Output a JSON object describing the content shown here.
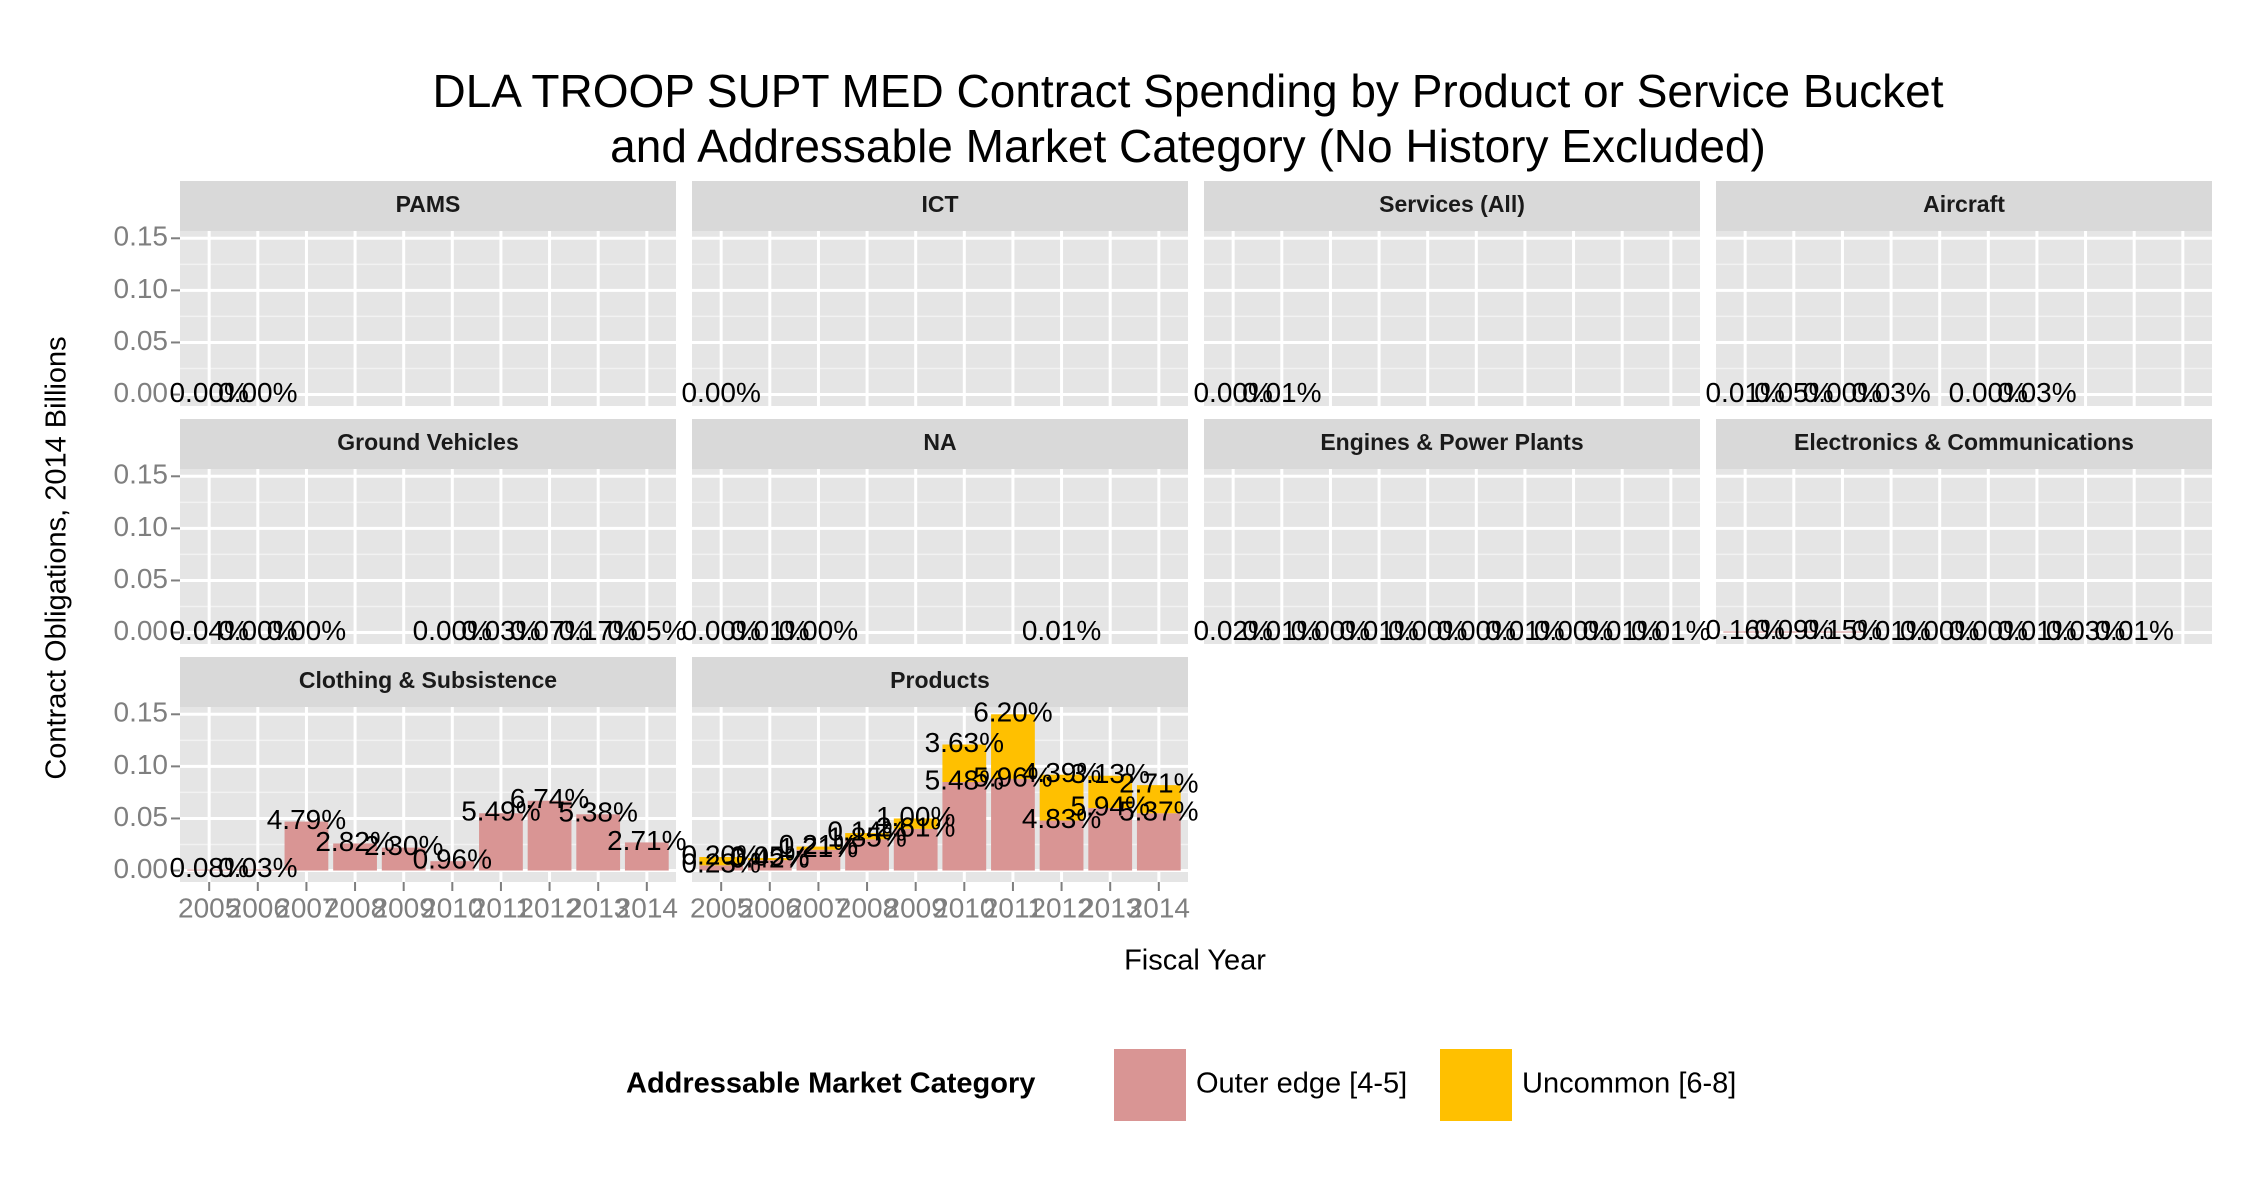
{
  "title": [
    "DLA TROOP SUPT MED Contract Spending by Product or Service Bucket",
    "and Addressable Market Category (No History Excluded)"
  ],
  "x_label": "Fiscal Year",
  "y_label": "Contract Obligations, 2014 Billions",
  "legend_title": "Addressable Market Category",
  "chart_data": [
    {
      "type": "bar",
      "stacked": true,
      "title": "PAMS",
      "grid": true,
      "categories": [
        "2005",
        "2006",
        "2007",
        "2008",
        "2009",
        "2010",
        "2011",
        "2012",
        "2013",
        "2014"
      ],
      "ylim": [
        -0.011,
        0.157
      ],
      "yticks": [
        {
          "value": 0,
          "label": "0.00"
        },
        {
          "value": 0.05,
          "label": "0.05"
        },
        {
          "value": 0.1,
          "label": "0.10"
        },
        {
          "value": 0.15,
          "label": "0.15"
        }
      ],
      "series": [
        {
          "name": "Outer edge [4-5]",
          "color": "#d99594",
          "values": [
            0,
            0,
            null,
            null,
            null,
            null,
            null,
            null,
            null,
            null
          ],
          "share_labels": [
            "0.00%",
            "0.00%",
            null,
            null,
            null,
            null,
            null,
            null,
            null,
            null
          ]
        },
        {
          "name": "Uncommon [6-8]",
          "color": "#ffc000",
          "values": [
            null,
            null,
            null,
            null,
            null,
            null,
            null,
            null,
            null,
            null
          ],
          "share_labels": [
            null,
            null,
            null,
            null,
            null,
            null,
            null,
            null,
            null,
            null
          ]
        }
      ]
    },
    {
      "type": "bar",
      "stacked": true,
      "title": "ICT",
      "grid": true,
      "categories": [
        "2005",
        "2006",
        "2007",
        "2008",
        "2009",
        "2010",
        "2011",
        "2012",
        "2013",
        "2014"
      ],
      "ylim": [
        -0.011,
        0.157
      ],
      "yticks": [
        {
          "value": 0,
          "label": "0.00"
        },
        {
          "value": 0.05,
          "label": "0.05"
        },
        {
          "value": 0.1,
          "label": "0.10"
        },
        {
          "value": 0.15,
          "label": "0.15"
        }
      ],
      "series": [
        {
          "name": "Outer edge [4-5]",
          "color": "#d99594",
          "values": [
            0,
            null,
            null,
            null,
            null,
            null,
            null,
            null,
            null,
            null
          ],
          "share_labels": [
            "0.00%",
            null,
            null,
            null,
            null,
            null,
            null,
            null,
            null,
            null
          ]
        },
        {
          "name": "Uncommon [6-8]",
          "color": "#ffc000",
          "values": [
            null,
            null,
            null,
            null,
            null,
            null,
            null,
            null,
            null,
            null
          ],
          "share_labels": [
            null,
            null,
            null,
            null,
            null,
            null,
            null,
            null,
            null,
            null
          ]
        }
      ]
    },
    {
      "type": "bar",
      "stacked": true,
      "title": "Services (All)",
      "grid": true,
      "categories": [
        "2005",
        "2006",
        "2007",
        "2008",
        "2009",
        "2010",
        "2011",
        "2012",
        "2013",
        "2014"
      ],
      "ylim": [
        -0.011,
        0.157
      ],
      "yticks": [
        {
          "value": 0,
          "label": "0.00"
        },
        {
          "value": 0.05,
          "label": "0.05"
        },
        {
          "value": 0.1,
          "label": "0.10"
        },
        {
          "value": 0.15,
          "label": "0.15"
        }
      ],
      "series": [
        {
          "name": "Outer edge [4-5]",
          "color": "#d99594",
          "values": [
            0,
            0,
            null,
            null,
            null,
            null,
            null,
            null,
            null,
            null
          ],
          "share_labels": [
            "0.00%",
            "0.01%",
            null,
            null,
            null,
            null,
            null,
            null,
            null,
            null
          ]
        },
        {
          "name": "Uncommon [6-8]",
          "color": "#ffc000",
          "values": [
            null,
            null,
            null,
            null,
            null,
            null,
            null,
            null,
            null,
            null
          ],
          "share_labels": [
            null,
            null,
            null,
            null,
            null,
            null,
            null,
            null,
            null,
            null
          ]
        }
      ]
    },
    {
      "type": "bar",
      "stacked": true,
      "title": "Aircraft",
      "grid": true,
      "categories": [
        "2005",
        "2006",
        "2007",
        "2008",
        "2009",
        "2010",
        "2011",
        "2012",
        "2013",
        "2014"
      ],
      "ylim": [
        -0.011,
        0.157
      ],
      "yticks": [
        {
          "value": 0,
          "label": "0.00"
        },
        {
          "value": 0.05,
          "label": "0.05"
        },
        {
          "value": 0.1,
          "label": "0.10"
        },
        {
          "value": 0.15,
          "label": "0.15"
        }
      ],
      "series": [
        {
          "name": "Outer edge [4-5]",
          "color": "#d99594",
          "values": [
            0,
            0,
            0,
            0,
            null,
            0,
            0,
            null,
            null,
            null
          ],
          "share_labels": [
            "0.01%",
            "0.05%",
            "0.00%",
            "0.03%",
            null,
            "0.00%",
            "0.03%",
            null,
            null,
            null
          ]
        },
        {
          "name": "Uncommon [6-8]",
          "color": "#ffc000",
          "values": [
            null,
            null,
            null,
            null,
            null,
            null,
            null,
            null,
            null,
            null
          ],
          "share_labels": [
            null,
            null,
            null,
            null,
            null,
            null,
            null,
            null,
            null,
            null
          ]
        }
      ]
    },
    {
      "type": "bar",
      "stacked": true,
      "title": "Ground Vehicles",
      "grid": true,
      "categories": [
        "2005",
        "2006",
        "2007",
        "2008",
        "2009",
        "2010",
        "2011",
        "2012",
        "2013",
        "2014"
      ],
      "ylim": [
        -0.011,
        0.157
      ],
      "yticks": [
        {
          "value": 0,
          "label": "0.00"
        },
        {
          "value": 0.05,
          "label": "0.05"
        },
        {
          "value": 0.1,
          "label": "0.10"
        },
        {
          "value": 0.15,
          "label": "0.15"
        }
      ],
      "series": [
        {
          "name": "Outer edge [4-5]",
          "color": "#d99594",
          "values": [
            0,
            0,
            0,
            null,
            null,
            0,
            0,
            0,
            0,
            0
          ],
          "share_labels": [
            "0.04%",
            "0.00%",
            "0.00%",
            null,
            null,
            "0.00%",
            "0.03%",
            "0.07%",
            "0.17%",
            "0.05%"
          ]
        },
        {
          "name": "Uncommon [6-8]",
          "color": "#ffc000",
          "values": [
            null,
            null,
            null,
            null,
            null,
            null,
            null,
            null,
            null,
            null
          ],
          "share_labels": [
            null,
            null,
            null,
            null,
            null,
            null,
            null,
            null,
            null,
            null
          ]
        }
      ]
    },
    {
      "type": "bar",
      "stacked": true,
      "title": "NA",
      "grid": true,
      "categories": [
        "2005",
        "2006",
        "2007",
        "2008",
        "2009",
        "2010",
        "2011",
        "2012",
        "2013",
        "2014"
      ],
      "ylim": [
        -0.011,
        0.157
      ],
      "yticks": [
        {
          "value": 0,
          "label": "0.00"
        },
        {
          "value": 0.05,
          "label": "0.05"
        },
        {
          "value": 0.1,
          "label": "0.10"
        },
        {
          "value": 0.15,
          "label": "0.15"
        }
      ],
      "series": [
        {
          "name": "Outer edge [4-5]",
          "color": "#d99594",
          "values": [
            0,
            0,
            0,
            null,
            null,
            null,
            null,
            0,
            null,
            null
          ],
          "share_labels": [
            "0.00%",
            "0.01%",
            "0.00%",
            null,
            null,
            null,
            null,
            "0.01%",
            null,
            null
          ]
        },
        {
          "name": "Uncommon [6-8]",
          "color": "#ffc000",
          "values": [
            null,
            null,
            null,
            null,
            null,
            null,
            null,
            null,
            null,
            null
          ],
          "share_labels": [
            null,
            null,
            null,
            null,
            null,
            null,
            null,
            null,
            null,
            null
          ]
        }
      ]
    },
    {
      "type": "bar",
      "stacked": true,
      "title": "Engines & Power Plants",
      "grid": true,
      "categories": [
        "2005",
        "2006",
        "2007",
        "2008",
        "2009",
        "2010",
        "2011",
        "2012",
        "2013",
        "2014"
      ],
      "ylim": [
        -0.011,
        0.157
      ],
      "yticks": [
        {
          "value": 0,
          "label": "0.00"
        },
        {
          "value": 0.05,
          "label": "0.05"
        },
        {
          "value": 0.1,
          "label": "0.10"
        },
        {
          "value": 0.15,
          "label": "0.15"
        }
      ],
      "series": [
        {
          "name": "Outer edge [4-5]",
          "color": "#d99594",
          "values": [
            0,
            0,
            0,
            0,
            0,
            0,
            0,
            0,
            0,
            0
          ],
          "share_labels": [
            "0.02%",
            "0.01%",
            "0.00%",
            "0.01%",
            "0.00%",
            "0.00%",
            "0.01%",
            "0.00%",
            "0.01%",
            "0.01%"
          ]
        },
        {
          "name": "Uncommon [6-8]",
          "color": "#ffc000",
          "values": [
            null,
            null,
            null,
            null,
            null,
            null,
            null,
            null,
            null,
            null
          ],
          "share_labels": [
            null,
            null,
            null,
            null,
            null,
            null,
            null,
            null,
            null,
            null
          ]
        }
      ]
    },
    {
      "type": "bar",
      "stacked": true,
      "title": "Electronics & Communications",
      "grid": true,
      "categories": [
        "2005",
        "2006",
        "2007",
        "2008",
        "2009",
        "2010",
        "2011",
        "2012",
        "2013",
        "2014"
      ],
      "ylim": [
        -0.011,
        0.157
      ],
      "yticks": [
        {
          "value": 0,
          "label": "0.00"
        },
        {
          "value": 0.05,
          "label": "0.05"
        },
        {
          "value": 0.1,
          "label": "0.10"
        },
        {
          "value": 0.15,
          "label": "0.15"
        }
      ],
      "series": [
        {
          "name": "Outer edge [4-5]",
          "color": "#d99594",
          "values": [
            0.001,
            0.001,
            0.001,
            0,
            0,
            0,
            0,
            0,
            0,
            null
          ],
          "share_labels": [
            "0.16%",
            "0.09%",
            "0.15%",
            "0.01%",
            "0.00%",
            "0.00%",
            "0.01%",
            "0.03%",
            "0.01%",
            null
          ]
        },
        {
          "name": "Uncommon [6-8]",
          "color": "#ffc000",
          "values": [
            null,
            null,
            null,
            null,
            null,
            null,
            null,
            null,
            null,
            null
          ],
          "share_labels": [
            null,
            null,
            null,
            null,
            null,
            null,
            null,
            null,
            null,
            null
          ]
        }
      ]
    },
    {
      "type": "bar",
      "stacked": true,
      "title": "Clothing & Subsistence",
      "grid": true,
      "categories": [
        "2005",
        "2006",
        "2007",
        "2008",
        "2009",
        "2010",
        "2011",
        "2012",
        "2013",
        "2014"
      ],
      "ylim": [
        -0.011,
        0.157
      ],
      "yticks": [
        {
          "value": 0,
          "label": "0.00"
        },
        {
          "value": 0.05,
          "label": "0.05"
        },
        {
          "value": 0.1,
          "label": "0.10"
        },
        {
          "value": 0.15,
          "label": "0.15"
        }
      ],
      "series": [
        {
          "name": "Outer edge [4-5]",
          "color": "#d99594",
          "values": [
            0.001,
            0.001,
            0.047,
            0.026,
            0.022,
            0.009,
            0.055,
            0.067,
            0.054,
            0.027
          ],
          "share_labels": [
            "0.08%",
            "0.03%",
            "4.79%",
            "2.82%",
            "2.30%",
            "0.96%",
            "5.49%",
            "6.74%",
            "5.38%",
            "2.71%"
          ]
        },
        {
          "name": "Uncommon [6-8]",
          "color": "#ffc000",
          "values": [
            null,
            null,
            null,
            null,
            null,
            null,
            null,
            null,
            null,
            null
          ],
          "share_labels": [
            null,
            null,
            null,
            null,
            null,
            null,
            null,
            null,
            null,
            null
          ]
        }
      ]
    },
    {
      "type": "bar",
      "stacked": true,
      "title": "Products",
      "grid": true,
      "categories": [
        "2005",
        "2006",
        "2007",
        "2008",
        "2009",
        "2010",
        "2011",
        "2012",
        "2013",
        "2014"
      ],
      "ylim": [
        -0.011,
        0.157
      ],
      "yticks": [
        {
          "value": 0,
          "label": "0.00"
        },
        {
          "value": 0.05,
          "label": "0.05"
        },
        {
          "value": 0.1,
          "label": "0.10"
        },
        {
          "value": 0.15,
          "label": "0.15"
        }
      ],
      "series": [
        {
          "name": "Outer edge [4-5]",
          "color": "#d99594",
          "values": [
            0.005,
            0.01,
            0.02,
            0.03,
            0.04,
            0.085,
            0.088,
            0.048,
            0.06,
            0.055
          ],
          "share_labels": [
            "0.23%",
            "0.42%",
            "1.21%",
            "1.85%",
            "2.61%",
            "5.48%",
            "5.96%",
            "4.83%",
            "5.94%",
            "5.37%"
          ]
        },
        {
          "name": "Uncommon [6-8]",
          "color": "#ffc000",
          "values": [
            0.008,
            0.002,
            0.003,
            0.006,
            0.01,
            0.036,
            0.062,
            0.044,
            0.031,
            0.027
          ],
          "share_labels": [
            "0.20%",
            "0.05%",
            "0.21%",
            "0.14%",
            "1.00%",
            "3.63%",
            "6.20%",
            "4.39%",
            "3.13%",
            "2.71%"
          ]
        }
      ]
    }
  ]
}
